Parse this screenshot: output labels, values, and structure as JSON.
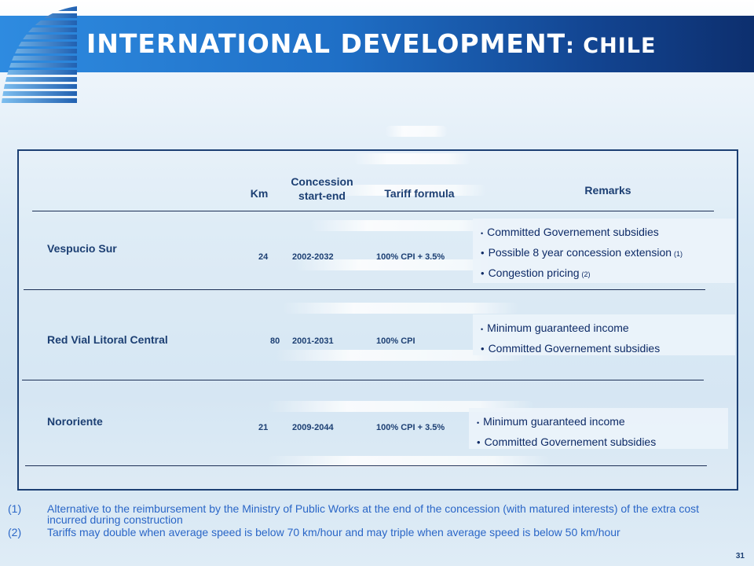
{
  "header": {
    "title_main": "INTERNATIONAL DEVELOPMENT",
    "title_sub": ": CHILE"
  },
  "table": {
    "columns": {
      "km": "Km",
      "concession": "Concession start-end",
      "tariff": "Tariff formula",
      "remarks": "Remarks"
    },
    "rows": [
      {
        "name": "Vespucio Sur",
        "km": "24",
        "period": "2002-2032",
        "tariff": "100% CPI + 3.5%",
        "remarks": [
          {
            "text": "Committed Governement subsidies",
            "note": ""
          },
          {
            "text": "Possible 8 year concession extension",
            "note": "(1)"
          },
          {
            "text": "Congestion pricing",
            "note": "(2)"
          }
        ]
      },
      {
        "name": "Red Vial Litoral Central",
        "km": "80",
        "period": "2001-2031",
        "tariff": "100% CPI",
        "remarks": [
          {
            "text": "Minimum guaranteed income",
            "note": ""
          },
          {
            "text": "Committed Governement subsidies",
            "note": ""
          }
        ]
      },
      {
        "name": "Nororiente",
        "km": "21",
        "period": "2009-2044",
        "tariff": "100% CPI + 3.5%",
        "remarks": [
          {
            "text": "Minimum guaranteed income",
            "note": ""
          },
          {
            "text": "Committed Governement subsidies",
            "note": ""
          }
        ]
      }
    ]
  },
  "footnotes": [
    {
      "num": "(1)",
      "text": "Alternative to the reimbursement by the Ministry of Public Works at the end of the concession (with matured interests) of the extra cost incurred during construction"
    },
    {
      "num": "(2)",
      "text": "Tariffs may double when average speed is below 70 km/hour and may triple when average speed is below 50 km/hour"
    }
  ],
  "page_number": "31",
  "colors": {
    "header_start": "#2e8be0",
    "header_end": "#0d2f6e",
    "text_dark_blue": "#1c3f73",
    "footnote_blue": "#2a66c7"
  }
}
